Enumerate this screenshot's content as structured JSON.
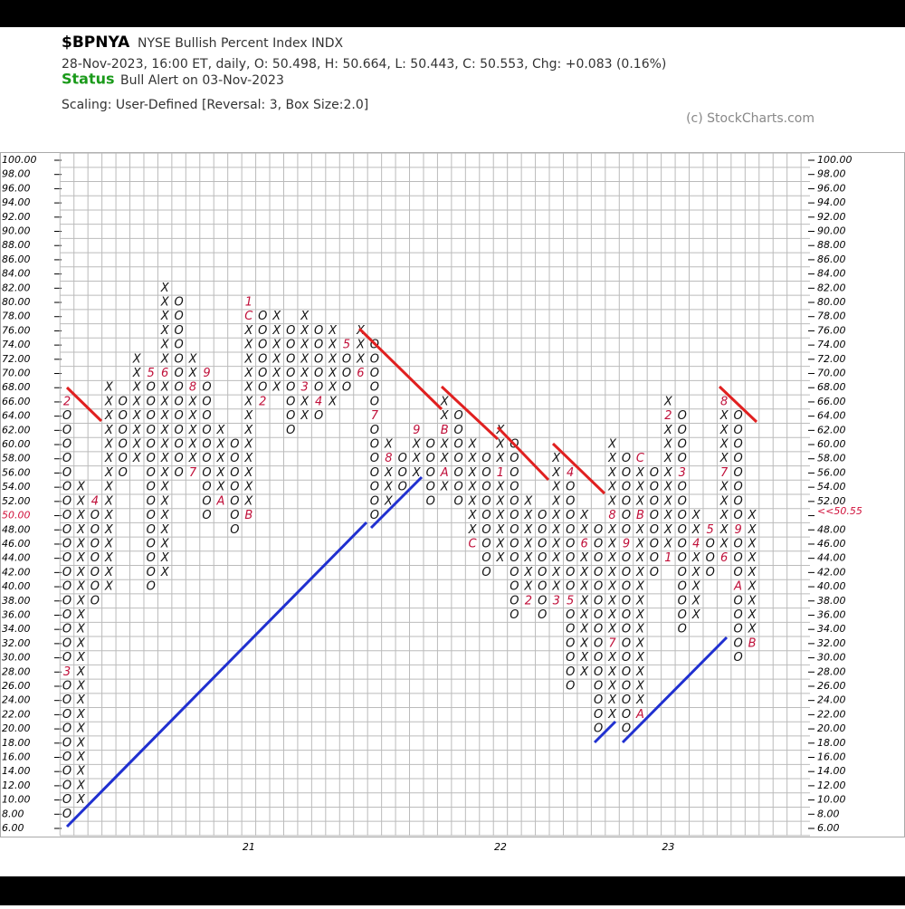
{
  "chart_data": {
    "type": "pnf",
    "symbol": "$BPNYA",
    "title": "NYSE Bullish Percent Index  INDX",
    "subtitle": "28-Nov-2023, 16:00 ET, daily, O: 50.498, H: 50.664, L: 50.443, C: 50.553, Chg: +0.083 (0.16%)",
    "status_label": "Status",
    "status": "Bull Alert on 03-Nov-2023",
    "scaling": "Scaling: User-Defined [Reversal: 3, Box Size:2.0]",
    "copyright": "(c) StockCharts.com",
    "box_size": 2,
    "ylim": [
      6,
      100
    ],
    "yticks": [
      {
        "value": 100,
        "label": "100.00"
      },
      {
        "value": 98,
        "label": "98.00"
      },
      {
        "value": 96,
        "label": "96.00"
      },
      {
        "value": 94,
        "label": "94.00"
      },
      {
        "value": 92,
        "label": "92.00"
      },
      {
        "value": 90,
        "label": "90.00"
      },
      {
        "value": 88,
        "label": "88.00"
      },
      {
        "value": 86,
        "label": "86.00"
      },
      {
        "value": 84,
        "label": "84.00"
      },
      {
        "value": 82,
        "label": "82.00"
      },
      {
        "value": 80,
        "label": "80.00"
      },
      {
        "value": 78,
        "label": "78.00"
      },
      {
        "value": 76,
        "label": "76.00"
      },
      {
        "value": 74,
        "label": "74.00"
      },
      {
        "value": 72,
        "label": "72.00"
      },
      {
        "value": 70,
        "label": "70.00"
      },
      {
        "value": 68,
        "label": "68.00"
      },
      {
        "value": 66,
        "label": "66.00"
      },
      {
        "value": 64,
        "label": "64.00"
      },
      {
        "value": 62,
        "label": "62.00"
      },
      {
        "value": 60,
        "label": "60.00"
      },
      {
        "value": 58,
        "label": "58.00"
      },
      {
        "value": 56,
        "label": "56.00"
      },
      {
        "value": 54,
        "label": "54.00"
      },
      {
        "value": 52,
        "label": "52.00"
      },
      {
        "value": 50,
        "label": "50.00"
      },
      {
        "value": 48,
        "label": "48.00"
      },
      {
        "value": 46,
        "label": "46.00"
      },
      {
        "value": 44,
        "label": "44.00"
      },
      {
        "value": 42,
        "label": "42.00"
      },
      {
        "value": 40,
        "label": "40.00"
      },
      {
        "value": 38,
        "label": "38.00"
      },
      {
        "value": 36,
        "label": "36.00"
      },
      {
        "value": 34,
        "label": "34.00"
      },
      {
        "value": 32,
        "label": "32.00"
      },
      {
        "value": 30,
        "label": "30.00"
      },
      {
        "value": 28,
        "label": "28.00"
      },
      {
        "value": 26,
        "label": "26.00"
      },
      {
        "value": 24,
        "label": "24.00"
      },
      {
        "value": 22,
        "label": "22.00"
      },
      {
        "value": 20,
        "label": "20.00"
      },
      {
        "value": 18,
        "label": "18.00"
      },
      {
        "value": 16,
        "label": "16.00"
      },
      {
        "value": 14,
        "label": "14.00"
      },
      {
        "value": 12,
        "label": "12.00"
      },
      {
        "value": 10,
        "label": "10.00"
      },
      {
        "value": 8,
        "label": "8.00"
      },
      {
        "value": 6,
        "label": "6.00"
      }
    ],
    "last_price": {
      "value": 50.55,
      "label": "<<50.55"
    },
    "x_labels": [
      {
        "column": 13,
        "label": "21"
      },
      {
        "column": 31,
        "label": "22"
      },
      {
        "column": 43,
        "label": "23"
      }
    ],
    "columns": [
      {
        "kind": "O",
        "high": 66,
        "low": 8
      },
      {
        "kind": "X",
        "low": 10,
        "high": 54
      },
      {
        "kind": "O",
        "high": 52,
        "low": 38
      },
      {
        "kind": "X",
        "low": 40,
        "high": 68
      },
      {
        "kind": "O",
        "high": 66,
        "low": 56
      },
      {
        "kind": "X",
        "low": 58,
        "high": 72
      },
      {
        "kind": "O",
        "high": 70,
        "low": 40
      },
      {
        "kind": "X",
        "low": 42,
        "high": 82
      },
      {
        "kind": "O",
        "high": 80,
        "low": 56
      },
      {
        "kind": "X",
        "low": 56,
        "high": 72
      },
      {
        "kind": "O",
        "high": 70,
        "low": 50
      },
      {
        "kind": "X",
        "low": 52,
        "high": 62
      },
      {
        "kind": "O",
        "high": 60,
        "low": 48
      },
      {
        "kind": "X",
        "low": 50,
        "high": 80
      },
      {
        "kind": "O",
        "high": 78,
        "low": 66
      },
      {
        "kind": "X",
        "low": 68,
        "high": 78
      },
      {
        "kind": "O",
        "high": 76,
        "low": 62
      },
      {
        "kind": "X",
        "low": 64,
        "high": 78
      },
      {
        "kind": "O",
        "high": 76,
        "low": 64
      },
      {
        "kind": "X",
        "low": 66,
        "high": 76
      },
      {
        "kind": "O",
        "high": 74,
        "low": 68
      },
      {
        "kind": "X",
        "low": 70,
        "high": 76
      },
      {
        "kind": "O",
        "high": 74,
        "low": 50
      },
      {
        "kind": "X",
        "low": 52,
        "high": 60
      },
      {
        "kind": "O",
        "high": 58,
        "low": 54
      },
      {
        "kind": "X",
        "low": 56,
        "high": 62
      },
      {
        "kind": "O",
        "high": 60,
        "low": 52
      },
      {
        "kind": "X",
        "low": 54,
        "high": 66
      },
      {
        "kind": "O",
        "high": 64,
        "low": 52
      },
      {
        "kind": "X",
        "low": 48,
        "high": 60
      },
      {
        "kind": "O",
        "high": 58,
        "low": 42
      },
      {
        "kind": "X",
        "low": 44,
        "high": 62
      },
      {
        "kind": "O",
        "high": 60,
        "low": 36
      },
      {
        "kind": "X",
        "low": 38,
        "high": 52
      },
      {
        "kind": "O",
        "high": 50,
        "low": 36
      },
      {
        "kind": "X",
        "low": 38,
        "high": 58
      },
      {
        "kind": "O",
        "high": 56,
        "low": 26
      },
      {
        "kind": "X",
        "low": 28,
        "high": 50
      },
      {
        "kind": "O",
        "high": 48,
        "low": 20
      },
      {
        "kind": "X",
        "low": 22,
        "high": 60
      },
      {
        "kind": "O",
        "high": 58,
        "low": 20
      },
      {
        "kind": "X",
        "low": 22,
        "high": 58
      },
      {
        "kind": "O",
        "high": 56,
        "low": 42
      },
      {
        "kind": "X",
        "low": 44,
        "high": 66
      },
      {
        "kind": "O",
        "high": 64,
        "low": 34
      },
      {
        "kind": "X",
        "low": 36,
        "high": 50
      },
      {
        "kind": "O",
        "high": 48,
        "low": 42
      },
      {
        "kind": "X",
        "low": 44,
        "high": 66
      },
      {
        "kind": "O",
        "high": 64,
        "low": 30
      },
      {
        "kind": "X",
        "low": 32,
        "high": 50
      }
    ],
    "month_marks": [
      {
        "column": 0,
        "value": 66,
        "label": "2"
      },
      {
        "column": 0,
        "value": 28,
        "label": "3"
      },
      {
        "column": 2,
        "value": 52,
        "label": "4"
      },
      {
        "column": 6,
        "value": 70,
        "label": "5"
      },
      {
        "column": 7,
        "value": 70,
        "label": "6"
      },
      {
        "column": 9,
        "value": 56,
        "label": "7"
      },
      {
        "column": 9,
        "value": 68,
        "label": "8"
      },
      {
        "column": 10,
        "value": 70,
        "label": "9"
      },
      {
        "column": 11,
        "value": 52,
        "label": "A"
      },
      {
        "column": 13,
        "value": 50,
        "label": "B"
      },
      {
        "column": 13,
        "value": 78,
        "label": "C"
      },
      {
        "column": 13,
        "value": 80,
        "label": "1"
      },
      {
        "column": 14,
        "value": 66,
        "label": "2"
      },
      {
        "column": 17,
        "value": 68,
        "label": "3"
      },
      {
        "column": 18,
        "value": 66,
        "label": "4"
      },
      {
        "column": 20,
        "value": 74,
        "label": "5"
      },
      {
        "column": 21,
        "value": 70,
        "label": "6"
      },
      {
        "column": 22,
        "value": 64,
        "label": "7"
      },
      {
        "column": 23,
        "value": 58,
        "label": "8"
      },
      {
        "column": 25,
        "value": 62,
        "label": "9"
      },
      {
        "column": 27,
        "value": 56,
        "label": "A"
      },
      {
        "column": 27,
        "value": 62,
        "label": "B"
      },
      {
        "column": 29,
        "value": 46,
        "label": "C"
      },
      {
        "column": 31,
        "value": 56,
        "label": "1"
      },
      {
        "column": 33,
        "value": 38,
        "label": "2"
      },
      {
        "column": 35,
        "value": 38,
        "label": "3"
      },
      {
        "column": 36,
        "value": 56,
        "label": "4"
      },
      {
        "column": 36,
        "value": 38,
        "label": "5"
      },
      {
        "column": 37,
        "value": 46,
        "label": "6"
      },
      {
        "column": 39,
        "value": 32,
        "label": "7"
      },
      {
        "column": 39,
        "value": 50,
        "label": "8"
      },
      {
        "column": 40,
        "value": 46,
        "label": "9"
      },
      {
        "column": 41,
        "value": 22,
        "label": "A"
      },
      {
        "column": 41,
        "value": 50,
        "label": "B"
      },
      {
        "column": 41,
        "value": 58,
        "label": "C"
      },
      {
        "column": 43,
        "value": 44,
        "label": "1"
      },
      {
        "column": 43,
        "value": 64,
        "label": "2"
      },
      {
        "column": 44,
        "value": 56,
        "label": "3"
      },
      {
        "column": 45,
        "value": 46,
        "label": "4"
      },
      {
        "column": 46,
        "value": 48,
        "label": "5"
      },
      {
        "column": 47,
        "value": 44,
        "label": "6"
      },
      {
        "column": 47,
        "value": 56,
        "label": "7"
      },
      {
        "column": 47,
        "value": 66,
        "label": "8"
      },
      {
        "column": 48,
        "value": 48,
        "label": "9"
      },
      {
        "column": 48,
        "value": 40,
        "label": "A"
      },
      {
        "column": 49,
        "value": 32,
        "label": "B"
      }
    ]
  }
}
